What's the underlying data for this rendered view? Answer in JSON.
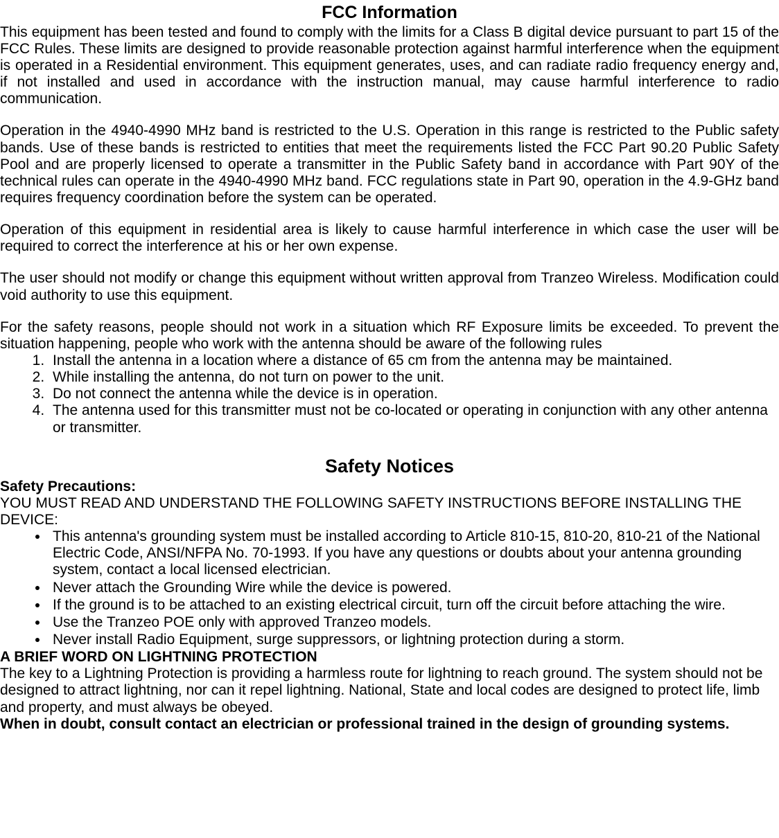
{
  "typography": {
    "font_family": "Arial, Helvetica, sans-serif",
    "body_fontsize_pt": 16,
    "title_fontsize_pt": 19,
    "section_title_fontsize_pt": 20,
    "text_color": "#000000",
    "background_color": "#ffffff",
    "line_height": 1.15,
    "body_align": "justify"
  },
  "fcc": {
    "title": "FCC Information",
    "p1": "This equipment has been tested and found to comply with the limits for a Class B digital device pursuant to part 15 of the FCC Rules. These limits are designed to provide reasonable protection against harmful interference when the equipment is operated in a Residential environment.  This equipment generates, uses, and can radiate radio frequency energy and, if not installed and used in accordance with the instruction manual, may cause harmful interference to radio communication.",
    "p2": "Operation in the 4940-4990 MHz band is restricted to the U.S. Operation in this range is restricted to the Public safety bands.  Use of these bands is restricted to entities that meet the requirements listed  the FCC Part 90.20 Public Safety Pool and are properly licensed to operate a transmitter in the Public Safety band in accordance with Part 90Y of the technical rules can operate in the 4940-4990 MHz band. FCC regulations state in Part 90, operation in the 4.9-GHz band requires frequency coordination before the system can be operated.",
    "p3": "Operation of this equipment in residential area is likely to cause harmful interference in which case the user will be required to correct the interference at his or her own expense.",
    "p4": "The user should not modify or change this equipment without written approval from Tranzeo Wireless. Modification could void authority to use this equipment.",
    "p5": "For the safety reasons, people should not work in a situation which RF Exposure limits be exceeded. To prevent the situation happening, people who work with the antenna should be aware of the following rules",
    "rules": [
      "Install the antenna in a location where a distance of 65 cm from the antenna may be maintained.",
      "While installing the antenna, do not turn on power to the unit.",
      "Do not connect the antenna while the device is in operation.",
      "The antenna used for this transmitter must not be co-located or operating in conjunction with any other antenna or transmitter."
    ]
  },
  "safety": {
    "title": "Safety Notices",
    "precautions_heading": "Safety Precautions:",
    "intro": "YOU MUST READ AND UNDERSTAND THE FOLLOWING SAFETY INSTRUCTIONS BEFORE INSTALLING THE DEVICE:",
    "bullets": [
      "This antenna's grounding system must be installed according to Article 810-15, 810-20, 810-21 of the National Electric Code, ANSI/NFPA No. 70-1993. If you have any questions or doubts about your antenna grounding system, contact a local licensed electrician.",
      "Never attach the Grounding Wire while the device is powered.",
      "If the ground is to be attached to an existing electrical circuit, turn off the circuit before attaching the wire.",
      "Use the Tranzeo POE only with approved Tranzeo models.",
      "Never install Radio Equipment, surge suppressors, or lightning protection during a storm."
    ],
    "lightning_heading": "A BRIEF WORD ON LIGHTNING PROTECTION",
    "lightning_body": "The key to a Lightning Protection is providing a harmless route for lightning to reach ground.  The system should not be designed to attract lightning, nor can it repel lightning.  National, State and local codes are designed to protect life, limb and property, and must always be obeyed.",
    "closing_bold": "When in doubt, consult contact an electrician or professional trained in the design of grounding systems"
  }
}
